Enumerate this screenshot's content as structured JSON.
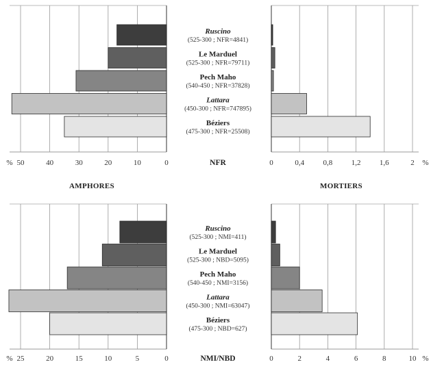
{
  "chart_data": {
    "type": "bar",
    "orientation": "horizontal",
    "section_labels": {
      "left": "AMPHORES",
      "right": "MORTIERS"
    },
    "sites": [
      {
        "name": "Ruscino",
        "italic": true,
        "top_meta": "(525-300 ; NFR=4841)",
        "bottom_meta": "(525-300 ; NMI=411)",
        "color": "#3d3d3d"
      },
      {
        "name": "Le Marduel",
        "italic": false,
        "top_meta": "(525-300 ; NFR=79711)",
        "bottom_meta": "(525-300 ; NBD=5095)",
        "color": "#5f5f5f"
      },
      {
        "name": "Pech Maho",
        "italic": false,
        "top_meta": "(540-450 ; NFR=37828)",
        "bottom_meta": "(540-450 ; NMI=3156)",
        "color": "#858585"
      },
      {
        "name": "Lattara",
        "italic": true,
        "top_meta": "(450-300 ; NFR=747895)",
        "bottom_meta": "(450-300 ; NMI=63047)",
        "color": "#c2c2c2"
      },
      {
        "name": "Béziers",
        "italic": false,
        "top_meta": "(475-300 ; NFR=25508)",
        "bottom_meta": "(475-300 ; NBD=627)",
        "color": "#e4e4e4"
      }
    ],
    "panels": [
      {
        "id": "top-left",
        "title": "AMPHORES NFR",
        "axis_direction": "reversed",
        "xlim": [
          0,
          52
        ],
        "ticks": [
          0,
          10,
          20,
          30,
          40,
          50
        ],
        "tick_labels": [
          "0",
          "10",
          "20",
          "30",
          "40",
          "50"
        ],
        "unit_label": "%",
        "values": [
          17,
          20,
          31,
          53,
          35
        ]
      },
      {
        "id": "top-right",
        "title": "MORTIERS NFR",
        "axis_direction": "normal",
        "xlim": [
          0,
          2
        ],
        "ticks": [
          0,
          0.4,
          0.8,
          1.2,
          1.6,
          2
        ],
        "tick_labels": [
          "0",
          "0,4",
          "0,8",
          "1,2",
          "1,6",
          "2"
        ],
        "unit_label": "%",
        "values": [
          0.02,
          0.05,
          0.03,
          0.5,
          1.4
        ]
      },
      {
        "id": "bottom-left",
        "title": "AMPHORES NMI/NBD",
        "axis_direction": "reversed",
        "xlim": [
          0,
          26
        ],
        "ticks": [
          0,
          5,
          10,
          15,
          20,
          25
        ],
        "tick_labels": [
          "0",
          "5",
          "10",
          "15",
          "20",
          "25"
        ],
        "unit_label": "%",
        "values": [
          8,
          11,
          17,
          27,
          20
        ]
      },
      {
        "id": "bottom-right",
        "title": "MORTIERS NMI/NBD",
        "axis_direction": "normal",
        "xlim": [
          0,
          10
        ],
        "ticks": [
          0,
          2,
          4,
          6,
          8,
          10
        ],
        "tick_labels": [
          "0",
          "2",
          "4",
          "6",
          "8",
          "10"
        ],
        "unit_label": "%",
        "values": [
          0.3,
          0.6,
          2,
          3.6,
          6.1
        ]
      }
    ],
    "axis_titles": {
      "top": "NFR",
      "bottom": "NMI/NBD"
    },
    "grid": true,
    "legend": "none"
  }
}
